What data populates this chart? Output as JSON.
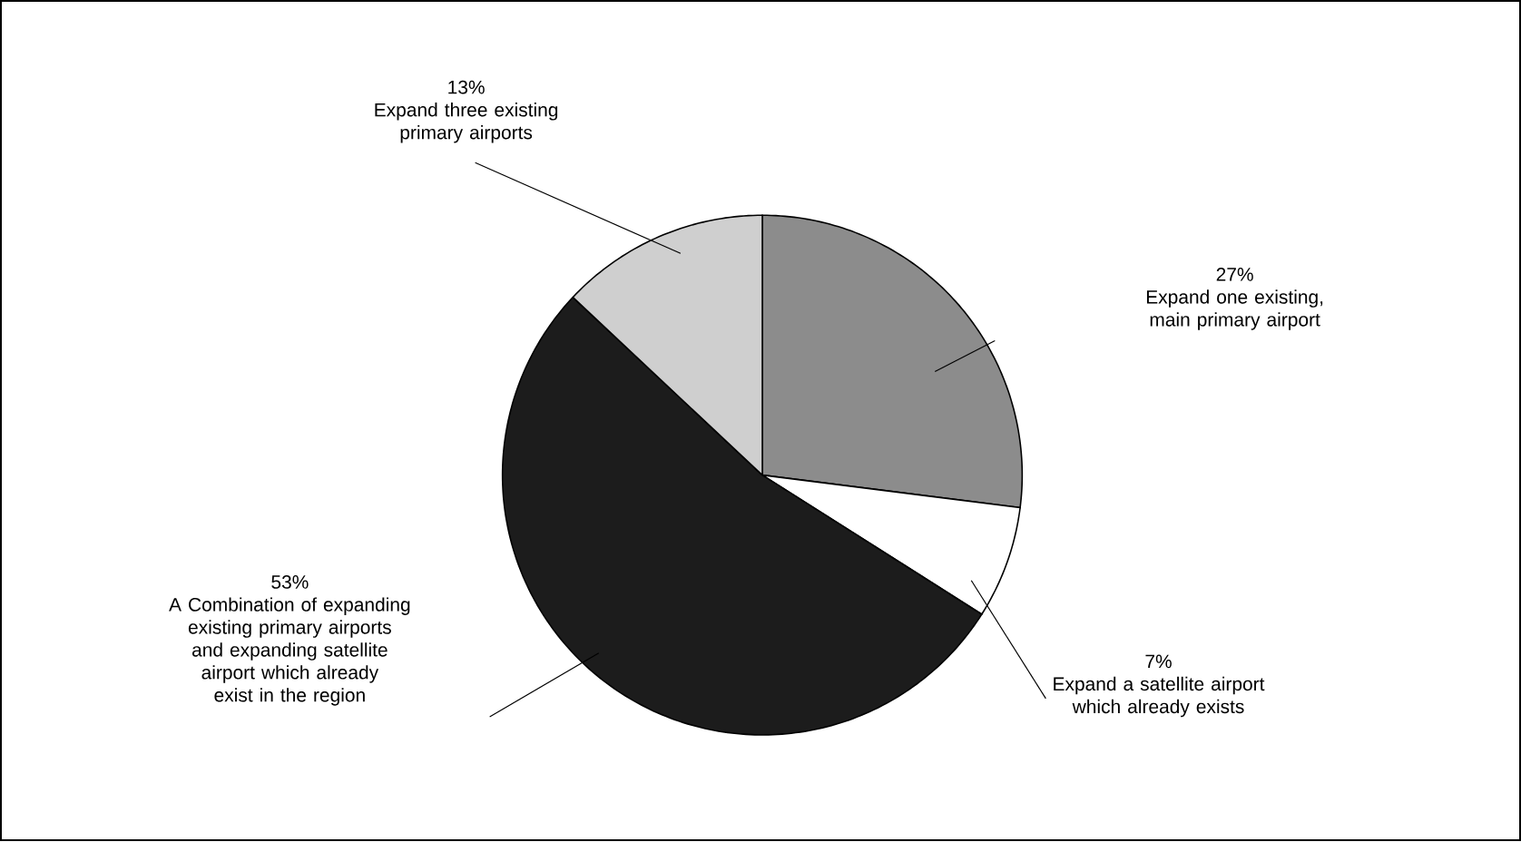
{
  "chart_data": {
    "type": "pie",
    "categories": [
      "Expand one existing, main primary airport",
      "Expand a satellite airport which already exists",
      "A Combination of expanding existing primary airports and expanding satellite airport which already exist in the region",
      "Expand three existing primary airports"
    ],
    "values": [
      27,
      7,
      53,
      13
    ],
    "colors": [
      "#8c8c8c",
      "#ffffff",
      "#1c1c1c",
      "#cfcfcf"
    ],
    "value_labels": [
      "27%",
      "7%",
      "53%",
      "13%"
    ]
  }
}
